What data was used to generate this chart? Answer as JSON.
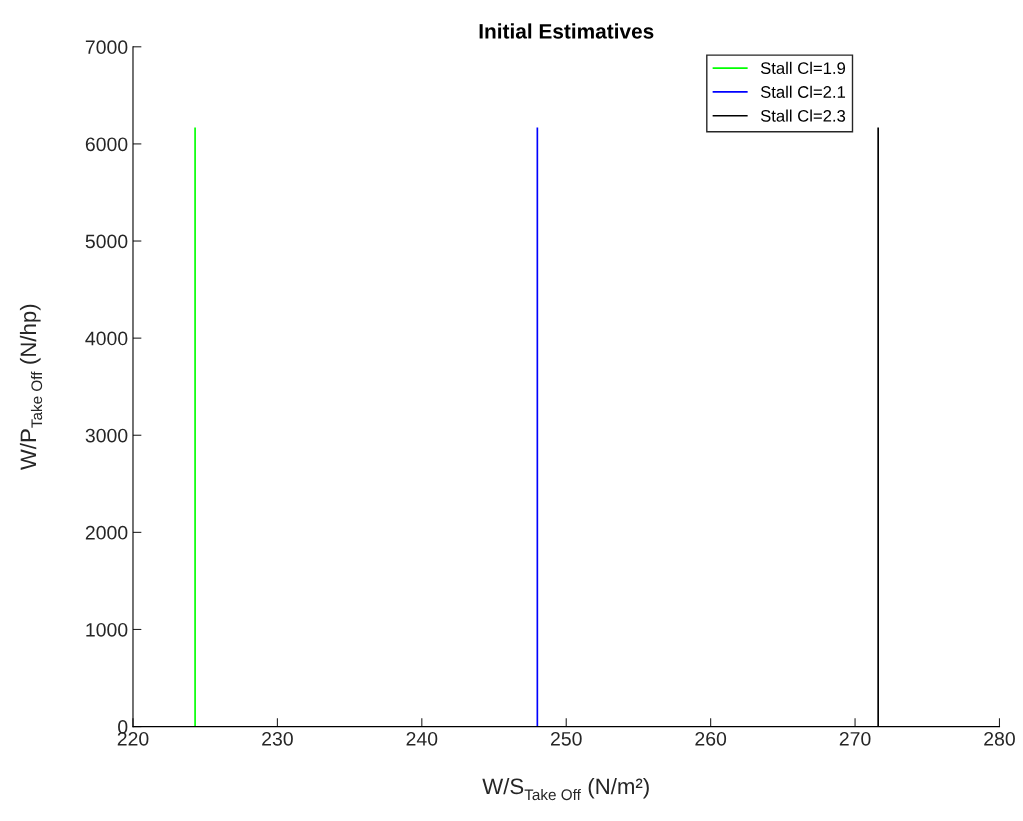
{
  "chart_data": {
    "type": "line",
    "title": "Initial Estimatives",
    "xlabel": "W/S$_{Take Off}$ (N/m²)",
    "ylabel": "W/P$_{Take Off}$ (N/hp)",
    "series": [
      {
        "name": "Stall Cl=1.9",
        "color": "#00ff00",
        "x": [
          224.3,
          224.3
        ],
        "values": [
          0,
          6160
        ]
      },
      {
        "name": "Stall Cl=2.1",
        "color": "#0000ff",
        "x": [
          248.0,
          248.0
        ],
        "values": [
          0,
          6160
        ]
      },
      {
        "name": "Stall Cl=2.3",
        "color": "#000000",
        "x": [
          271.6,
          271.6
        ],
        "values": [
          0,
          6160
        ]
      }
    ],
    "xlim": [
      220,
      280
    ],
    "xticks": [
      220,
      230,
      240,
      250,
      260,
      270,
      280
    ],
    "ylim": [
      0,
      7000
    ],
    "yticks": [
      0,
      1000,
      2000,
      3000,
      4000,
      5000,
      6000,
      7000
    ],
    "grid": false,
    "legend": "top right",
    "marker": "none",
    "line_style": "solid"
  }
}
